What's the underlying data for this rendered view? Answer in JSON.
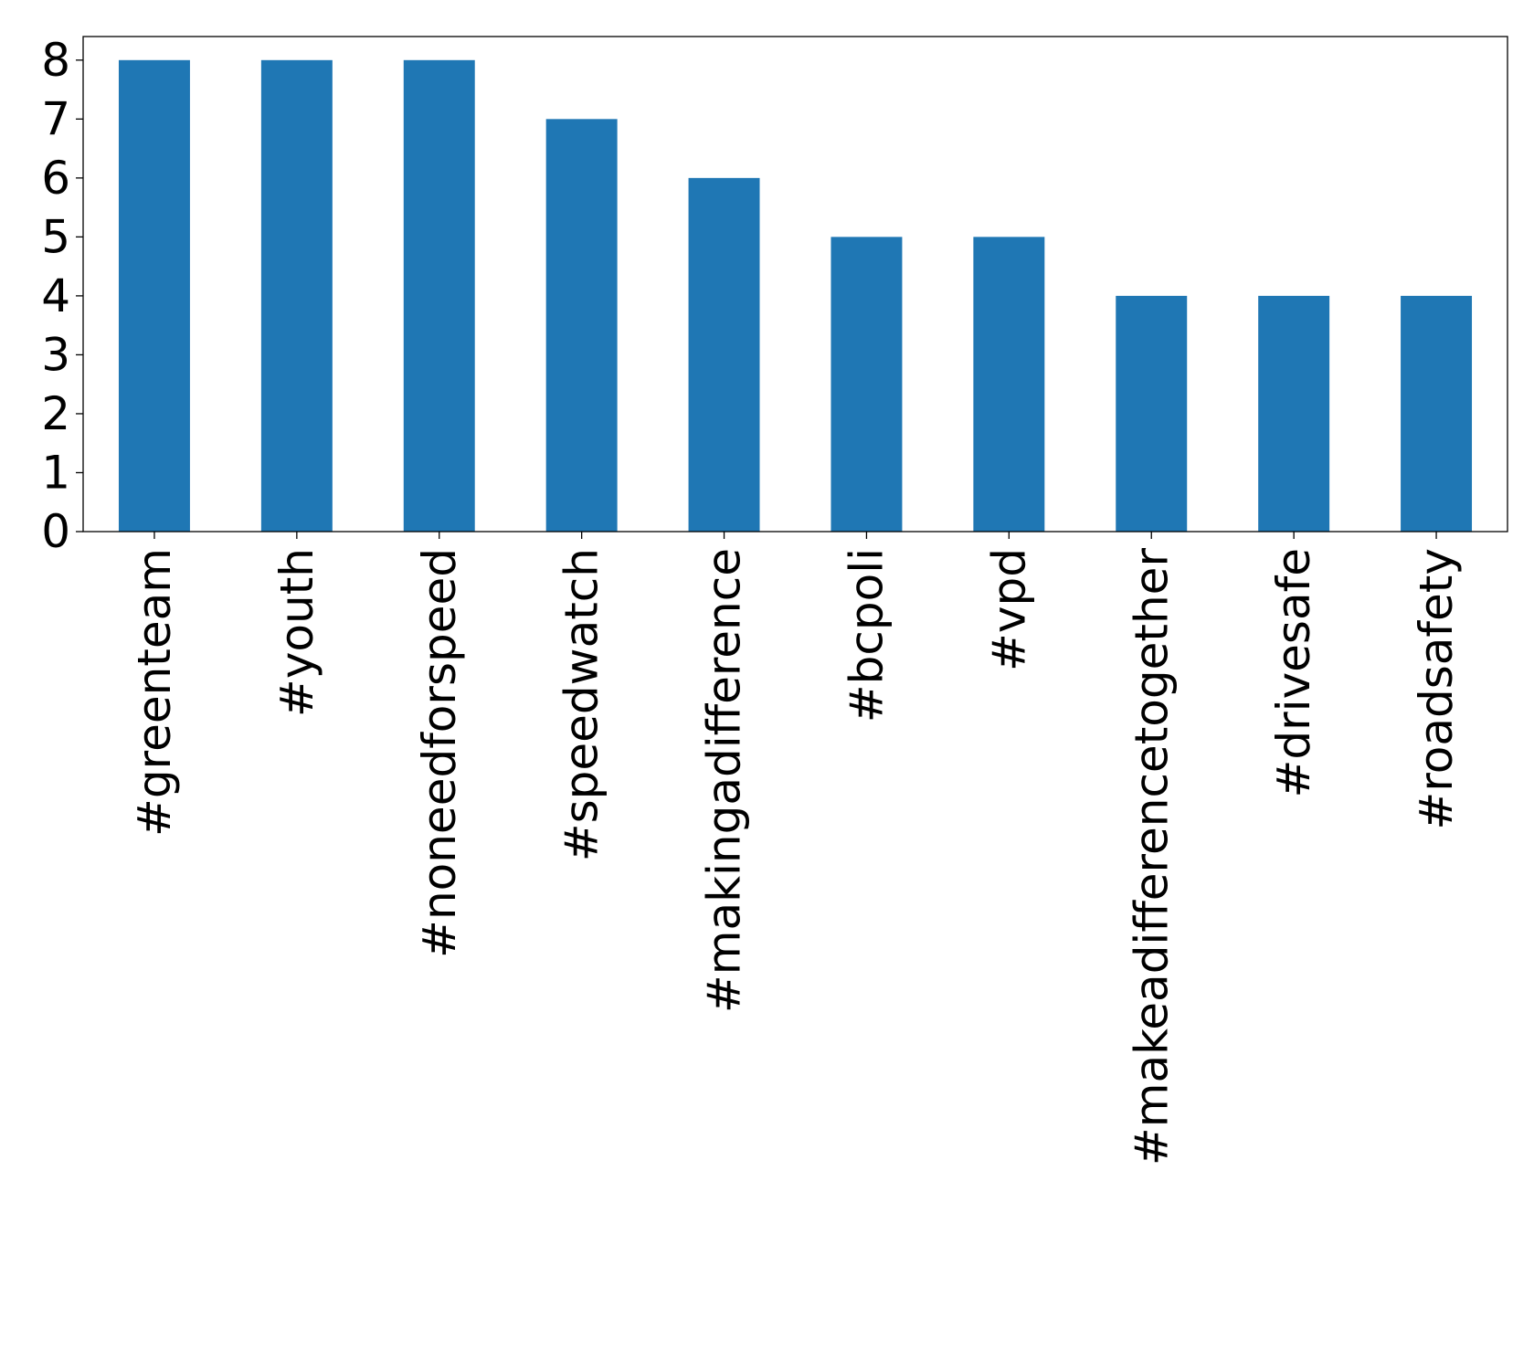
{
  "chart_data": {
    "type": "bar",
    "title": "",
    "xlabel": "",
    "ylabel": "",
    "categories": [
      "#greenteam",
      "#youth",
      "#noneedforspeed",
      "#speedwatch",
      "#makingadifference",
      "#bcpoli",
      "#vpd",
      "#makeadifferencetogether",
      "#drivesafe",
      "#roadsafety"
    ],
    "values": [
      8,
      8,
      8,
      7,
      6,
      5,
      5,
      4,
      4,
      4
    ],
    "ylim": [
      0,
      8.4
    ],
    "yticks": [
      0,
      1,
      2,
      3,
      4,
      5,
      6,
      7,
      8
    ],
    "grid": false,
    "legend": "none",
    "colors": {
      "bar": "#1f77b4",
      "axis": "#000000",
      "background": "#ffffff"
    }
  }
}
